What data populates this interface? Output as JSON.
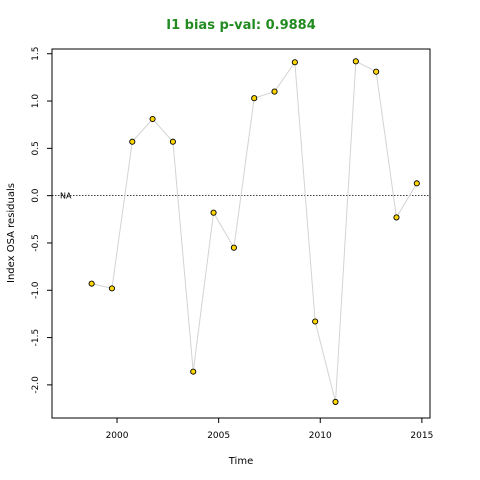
{
  "chart_data": {
    "type": "scatter",
    "title": "I1 bias p-val: 0.9884",
    "xlabel": "Time",
    "ylabel": "Index OSA residuals",
    "xlim": [
      1996.8,
      2015.4
    ],
    "ylim": [
      -2.35,
      1.55
    ],
    "x_ticks": [
      2000,
      2005,
      2010,
      2015
    ],
    "y_ticks": [
      -2.0,
      -1.5,
      -1.0,
      -0.5,
      0.0,
      0.5,
      1.0,
      1.5
    ],
    "y_tick_labels": [
      "-2.0",
      "-1.5",
      "-1.0",
      "-0.5",
      "0.0",
      "0.5",
      "1.0",
      "1.5"
    ],
    "reference_line": {
      "y": 0,
      "style": "dotted",
      "label": "NA"
    },
    "grid": false,
    "point_fill": "#FFD700",
    "point_stroke": "#000000",
    "line_color": "#D3D3D3",
    "title_color": "#228B22",
    "series": [
      {
        "x": [
          1998.75,
          1999.75,
          2000.75,
          2001.75,
          2002.75,
          2003.75,
          2004.75,
          2005.75,
          2006.75,
          2007.75,
          2008.75,
          2009.75,
          2010.75,
          2011.75,
          2012.75,
          2013.75,
          2014.75
        ],
        "y": [
          -0.93,
          -0.98,
          0.57,
          0.81,
          0.57,
          -1.86,
          -0.18,
          -0.55,
          1.03,
          1.1,
          1.41,
          -1.33,
          -2.18,
          1.42,
          1.31,
          -0.23,
          0.13
        ]
      }
    ]
  }
}
